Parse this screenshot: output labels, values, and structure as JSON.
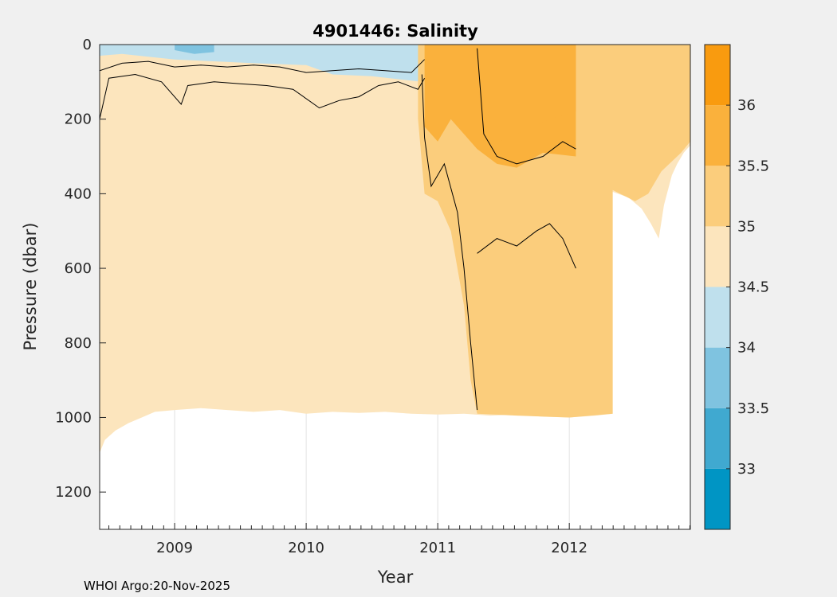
{
  "chart_data": {
    "type": "heatmap",
    "title": "4901446:  Salinity",
    "xlabel": "Year",
    "ylabel": "Pressure (dbar)",
    "footer": "WHOI Argo:20-Nov-2025",
    "x_range": [
      2008.43,
      2012.92
    ],
    "y_range": [
      0,
      1300
    ],
    "y_reversed": true,
    "xticks": [
      {
        "value": 2009,
        "label": "2009"
      },
      {
        "value": 2010,
        "label": "2010"
      },
      {
        "value": 2011,
        "label": "2011"
      },
      {
        "value": 2012,
        "label": "2012"
      }
    ],
    "yticks": [
      {
        "value": 0,
        "label": "0"
      },
      {
        "value": 200,
        "label": "200"
      },
      {
        "value": 400,
        "label": "400"
      },
      {
        "value": 600,
        "label": "600"
      },
      {
        "value": 800,
        "label": "800"
      },
      {
        "value": 1000,
        "label": "1000"
      },
      {
        "value": 1200,
        "label": "1200"
      }
    ],
    "colorbar": {
      "range": [
        32.5,
        36.5
      ],
      "levels": [
        32.5,
        33,
        33.5,
        34,
        34.5,
        35,
        35.5,
        36,
        36.5
      ],
      "colors": [
        "#0095c4",
        "#40a9d0",
        "#7fc3e0",
        "#bfe0ed",
        "#fce5bd",
        "#fbcd7c",
        "#fab13c",
        "#f99b0f"
      ],
      "ticks": [
        {
          "value": 33,
          "label": "33"
        },
        {
          "value": 33.5,
          "label": "33.5"
        },
        {
          "value": 34,
          "label": "34"
        },
        {
          "value": 34.5,
          "label": "34.5"
        },
        {
          "value": 35,
          "label": "35"
        },
        {
          "value": 35.5,
          "label": "35.5"
        },
        {
          "value": 36,
          "label": "36"
        }
      ]
    },
    "regions": [
      {
        "name": "upper-low-salinity",
        "salinity_band": "34-34.5",
        "color": "#bfe0ed",
        "polygon": [
          [
            2008.43,
            0
          ],
          [
            2010.88,
            0
          ],
          [
            2010.88,
            100
          ],
          [
            2010.5,
            85
          ],
          [
            2010.2,
            80
          ],
          [
            2010.0,
            55
          ],
          [
            2009.6,
            50
          ],
          [
            2009.0,
            40
          ],
          [
            2008.6,
            25
          ],
          [
            2008.43,
            30
          ]
        ]
      },
      {
        "name": "surface-fresh-patches",
        "salinity_band": "33.5-34",
        "color": "#7fc3e0",
        "polygon": [
          [
            2009.0,
            0
          ],
          [
            2009.3,
            0
          ],
          [
            2009.3,
            20
          ],
          [
            2009.15,
            25
          ],
          [
            2009.0,
            15
          ]
        ]
      },
      {
        "name": "eastern-high-salinity",
        "salinity_band": "35-35.5",
        "color": "#fbcd7c",
        "polygon": [
          [
            2010.85,
            0
          ],
          [
            2012.92,
            0
          ],
          [
            2012.92,
            260
          ],
          [
            2012.85,
            290
          ],
          [
            2012.7,
            340
          ],
          [
            2012.6,
            400
          ],
          [
            2012.5,
            420
          ],
          [
            2012.33,
            390
          ],
          [
            2012.33,
            990
          ],
          [
            2012.0,
            1000
          ],
          [
            2011.6,
            995
          ],
          [
            2011.3,
            990
          ],
          [
            2011.25,
            900
          ],
          [
            2011.2,
            700
          ],
          [
            2011.1,
            500
          ],
          [
            2011.0,
            420
          ],
          [
            2010.9,
            400
          ],
          [
            2010.85,
            200
          ]
        ]
      },
      {
        "name": "core-very-salty",
        "salinity_band": "35.5-36",
        "color": "#fab13c",
        "polygon": [
          [
            2010.9,
            0
          ],
          [
            2012.05,
            0
          ],
          [
            2012.05,
            300
          ],
          [
            2011.8,
            290
          ],
          [
            2011.6,
            330
          ],
          [
            2011.45,
            320
          ],
          [
            2011.3,
            280
          ],
          [
            2011.1,
            200
          ],
          [
            2011.0,
            260
          ],
          [
            2010.9,
            220
          ]
        ]
      },
      {
        "name": "near-surface-high-salinity",
        "salinity_band": "35.5-36",
        "color": "#fab13c",
        "polygon": [
          [
            2011.35,
            0
          ],
          [
            2012.05,
            0
          ],
          [
            2012.05,
            180
          ],
          [
            2011.85,
            200
          ],
          [
            2011.6,
            240
          ],
          [
            2011.4,
            270
          ]
        ]
      }
    ],
    "data_bottom_profile": [
      [
        2008.43,
        1095
      ],
      [
        2008.47,
        1060
      ],
      [
        2008.55,
        1035
      ],
      [
        2008.65,
        1015
      ],
      [
        2008.75,
        1000
      ],
      [
        2008.85,
        985
      ],
      [
        2009.0,
        980
      ],
      [
        2009.2,
        975
      ],
      [
        2009.4,
        980
      ],
      [
        2009.6,
        985
      ],
      [
        2009.8,
        980
      ],
      [
        2010.0,
        990
      ],
      [
        2010.2,
        985
      ],
      [
        2010.4,
        988
      ],
      [
        2010.6,
        985
      ],
      [
        2010.8,
        990
      ],
      [
        2011.0,
        992
      ],
      [
        2011.2,
        990
      ],
      [
        2011.4,
        995
      ],
      [
        2011.6,
        992
      ],
      [
        2011.8,
        998
      ],
      [
        2012.0,
        1000
      ],
      [
        2012.2,
        995
      ],
      [
        2012.33,
        990
      ],
      [
        2012.33,
        395
      ],
      [
        2012.45,
        410
      ],
      [
        2012.55,
        440
      ],
      [
        2012.62,
        480
      ],
      [
        2012.68,
        520
      ],
      [
        2012.72,
        430
      ],
      [
        2012.78,
        350
      ],
      [
        2012.82,
        320
      ],
      [
        2012.87,
        290
      ],
      [
        2012.92,
        270
      ]
    ],
    "contours": [
      {
        "level": 34.5,
        "points": [
          [
            2008.43,
            200
          ],
          [
            2008.5,
            90
          ],
          [
            2008.7,
            80
          ],
          [
            2008.9,
            100
          ],
          [
            2009.05,
            160
          ],
          [
            2009.1,
            110
          ],
          [
            2009.3,
            100
          ],
          [
            2009.5,
            105
          ],
          [
            2009.7,
            110
          ],
          [
            2009.9,
            120
          ],
          [
            2010.1,
            170
          ],
          [
            2010.25,
            150
          ],
          [
            2010.4,
            140
          ],
          [
            2010.55,
            110
          ],
          [
            2010.7,
            100
          ],
          [
            2010.85,
            120
          ],
          [
            2010.9,
            90
          ]
        ]
      },
      {
        "level": 34.0,
        "points": [
          [
            2008.43,
            70
          ],
          [
            2008.6,
            50
          ],
          [
            2008.8,
            45
          ],
          [
            2009.0,
            60
          ],
          [
            2009.2,
            55
          ],
          [
            2009.4,
            60
          ],
          [
            2009.6,
            55
          ],
          [
            2009.8,
            60
          ],
          [
            2010.0,
            75
          ],
          [
            2010.2,
            70
          ],
          [
            2010.4,
            65
          ],
          [
            2010.6,
            70
          ],
          [
            2010.8,
            75
          ],
          [
            2010.9,
            40
          ]
        ]
      },
      {
        "level": 35.0,
        "points": [
          [
            2010.88,
            80
          ],
          [
            2010.9,
            250
          ],
          [
            2010.95,
            380
          ],
          [
            2011.05,
            320
          ],
          [
            2011.15,
            450
          ],
          [
            2011.2,
            600
          ],
          [
            2011.25,
            800
          ],
          [
            2011.3,
            980
          ]
        ]
      },
      {
        "level": 35.5,
        "points": [
          [
            2011.3,
            10
          ],
          [
            2011.35,
            240
          ],
          [
            2011.45,
            300
          ],
          [
            2011.6,
            320
          ],
          [
            2011.8,
            300
          ],
          [
            2011.95,
            260
          ],
          [
            2012.05,
            280
          ]
        ]
      },
      {
        "level": 35.5,
        "points": [
          [
            2011.3,
            560
          ],
          [
            2011.45,
            520
          ],
          [
            2011.6,
            540
          ],
          [
            2011.75,
            500
          ],
          [
            2011.85,
            480
          ],
          [
            2011.95,
            520
          ],
          [
            2012.05,
            600
          ]
        ]
      }
    ]
  }
}
